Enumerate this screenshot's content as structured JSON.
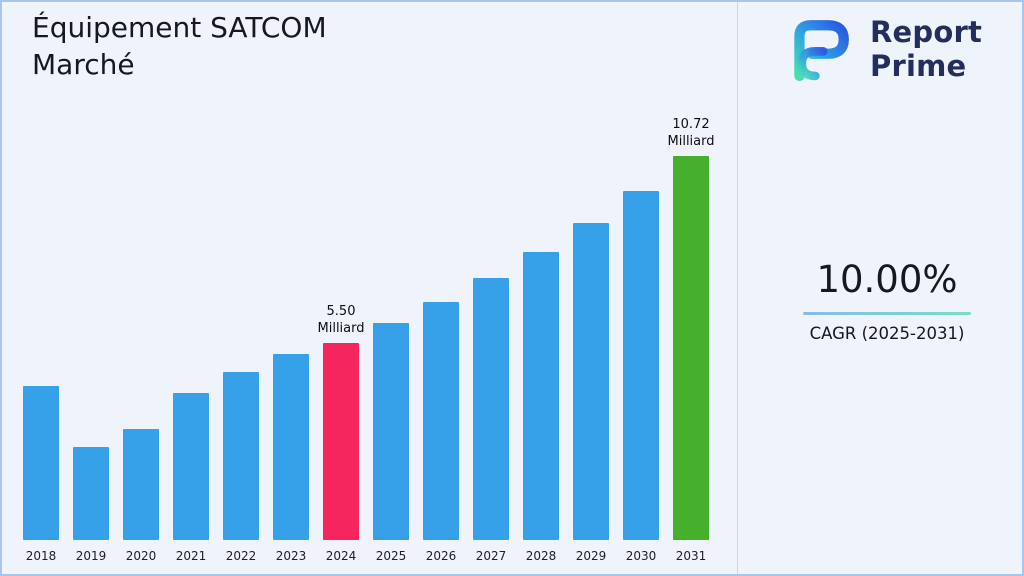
{
  "page": {
    "title": "Équipement SATCOM Marché"
  },
  "brand": {
    "line1": "Report",
    "line2": "Prime"
  },
  "stats": {
    "cagr_value": "10.00%",
    "cagr_label": "CAGR (2025-2031)"
  },
  "chart_data": {
    "type": "bar",
    "title": "Équipement SATCOM Marché",
    "unit": "Milliard",
    "categories": [
      "2018",
      "2019",
      "2020",
      "2021",
      "2022",
      "2023",
      "2024",
      "2025",
      "2026",
      "2027",
      "2028",
      "2029",
      "2030",
      "2031"
    ],
    "values": [
      4.3,
      2.6,
      3.1,
      4.1,
      4.7,
      5.2,
      5.5,
      6.05,
      6.65,
      7.32,
      8.05,
      8.85,
      9.74,
      10.72
    ],
    "ylim": [
      0,
      12
    ],
    "grid": false,
    "legend": false,
    "xlabel": "",
    "ylabel": "",
    "colors": {
      "default": "#36A0E8",
      "highlights": {
        "6": "#F5265E",
        "13": "#44B02C"
      }
    },
    "annotations": [
      {
        "index": 6,
        "lines": [
          "5.50",
          "Milliard"
        ]
      },
      {
        "index": 13,
        "lines": [
          "10.72",
          "Milliard"
        ]
      }
    ]
  }
}
